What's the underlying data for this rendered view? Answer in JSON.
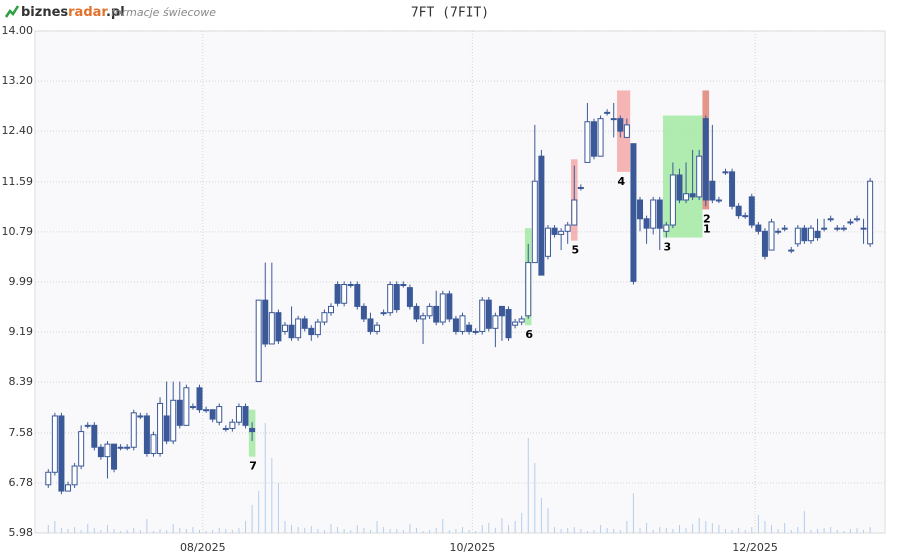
{
  "header": {
    "logo_parts": [
      "biznes",
      "radar",
      ".pl"
    ],
    "subtitle": "formacje świecowe"
  },
  "chart_data": {
    "type": "candlestick",
    "title": "7FT (7FIT)",
    "ylim": [
      5.98,
      14.0
    ],
    "yticks": [
      {
        "value": 5.98,
        "label": "5.98"
      },
      {
        "value": 6.78,
        "label": "6.78"
      },
      {
        "value": 7.58,
        "label": "7.58"
      },
      {
        "value": 8.39,
        "label": "8.39"
      },
      {
        "value": 9.19,
        "label": "9.19"
      },
      {
        "value": 9.99,
        "label": "9.99"
      },
      {
        "value": 10.79,
        "label": "10.79"
      },
      {
        "value": 11.59,
        "label": "11.59"
      },
      {
        "value": 12.4,
        "label": "12.40"
      },
      {
        "value": 13.2,
        "label": "13.20"
      },
      {
        "value": 14.0,
        "label": "14.00"
      }
    ],
    "xlim": [
      -0.5,
      126.5
    ],
    "xticks": [
      {
        "value": 23.5,
        "label": "08/2025"
      },
      {
        "value": 64.5,
        "label": "10/2025"
      },
      {
        "value": 107.5,
        "label": "12/2025"
      }
    ],
    "grid": true,
    "up_color": "#ffffff",
    "down_color": "#3b5998",
    "edge_color": "#3b5998",
    "volume_color": "#b3cdee",
    "open": [
      6.75,
      6.95,
      7.85,
      6.65,
      6.75,
      7.05,
      7.7,
      7.7,
      7.35,
      7.2,
      7.4,
      7.35,
      7.35,
      7.35,
      7.85,
      7.85,
      7.25,
      7.25,
      7.85,
      7.45,
      8.1,
      7.7,
      8.0,
      8.3,
      7.95,
      7.95,
      7.75,
      7.65,
      7.65,
      7.75,
      8.0,
      7.65,
      8.4,
      9.7,
      9.0,
      9.5,
      9.2,
      9.3,
      9.1,
      9.4,
      9.25,
      9.15,
      9.35,
      9.5,
      9.95,
      9.65,
      9.95,
      9.95,
      9.6,
      9.4,
      9.2,
      9.5,
      9.5,
      9.95,
      9.95,
      9.9,
      9.6,
      9.4,
      9.45,
      9.6,
      9.35,
      9.8,
      9.4,
      9.2,
      9.3,
      9.2,
      9.2,
      9.7,
      9.25,
      9.6,
      9.55,
      9.3,
      9.35,
      9.45,
      10.3,
      12.0,
      10.4,
      10.85,
      10.75,
      10.8,
      10.9,
      11.5,
      11.9,
      12.55,
      12.0,
      12.7,
      12.6,
      12.6,
      12.3,
      12.2,
      11.3,
      11.0,
      10.85,
      11.3,
      10.8,
      10.9,
      11.7,
      11.3,
      11.4,
      11.35,
      12.6,
      11.6,
      11.3,
      11.75,
      11.75,
      11.2,
      11.05,
      11.35,
      10.9,
      10.8,
      10.5,
      10.8,
      10.85,
      10.5,
      10.6,
      10.85,
      10.65,
      10.8,
      10.85,
      11.0,
      10.85,
      10.85,
      10.95,
      11.0,
      10.85,
      10.6
    ],
    "high": [
      7.0,
      7.9,
      7.9,
      6.8,
      7.1,
      7.7,
      7.75,
      7.75,
      7.4,
      7.45,
      7.4,
      7.4,
      7.4,
      7.95,
      7.9,
      7.9,
      7.6,
      8.15,
      8.4,
      8.4,
      8.4,
      8.35,
      8.05,
      8.35,
      8.0,
      7.95,
      8.05,
      7.7,
      7.8,
      8.05,
      8.05,
      7.75,
      9.7,
      10.3,
      10.3,
      9.55,
      9.35,
      9.6,
      9.45,
      9.45,
      9.3,
      9.4,
      9.55,
      9.65,
      10.0,
      10.0,
      10.0,
      10.0,
      9.65,
      9.5,
      9.35,
      9.55,
      10.0,
      10.0,
      10.0,
      9.95,
      9.65,
      9.5,
      9.65,
      9.85,
      9.85,
      9.85,
      9.45,
      9.5,
      9.35,
      9.25,
      9.75,
      9.75,
      9.5,
      9.6,
      9.6,
      9.4,
      9.45,
      10.6,
      12.5,
      12.1,
      10.9,
      10.9,
      10.85,
      10.95,
      11.85,
      11.55,
      12.85,
      12.6,
      12.65,
      12.75,
      12.85,
      12.65,
      12.6,
      12.2,
      11.35,
      11.05,
      11.35,
      11.35,
      10.95,
      11.9,
      11.8,
      11.9,
      12.1,
      12.1,
      12.65,
      12.5,
      11.35,
      11.8,
      11.8,
      11.25,
      11.1,
      11.4,
      10.95,
      10.85,
      11.0,
      10.85,
      10.9,
      10.55,
      10.9,
      10.9,
      10.9,
      11.0,
      11.0,
      11.05,
      10.9,
      10.9,
      11.0,
      11.05,
      11.0,
      11.65
    ],
    "low": [
      6.7,
      6.9,
      6.6,
      6.65,
      6.7,
      7.0,
      7.65,
      7.3,
      7.15,
      6.85,
      6.95,
      7.3,
      7.3,
      7.3,
      7.8,
      7.2,
      7.2,
      7.2,
      7.4,
      7.4,
      7.65,
      7.7,
      7.95,
      7.9,
      7.9,
      7.75,
      7.7,
      7.6,
      7.6,
      7.7,
      7.65,
      7.45,
      8.4,
      8.95,
      9.0,
      9.0,
      9.15,
      9.05,
      9.05,
      9.2,
      9.05,
      9.1,
      9.3,
      9.45,
      9.6,
      9.6,
      9.9,
      9.55,
      9.35,
      9.15,
      9.15,
      9.45,
      9.45,
      9.5,
      9.9,
      9.55,
      9.35,
      9.0,
      9.4,
      9.3,
      9.3,
      9.35,
      9.15,
      9.15,
      9.15,
      9.15,
      9.15,
      9.2,
      8.95,
      9.05,
      9.05,
      9.25,
      9.3,
      9.4,
      10.3,
      10.1,
      10.35,
      10.7,
      10.5,
      10.6,
      10.9,
      11.45,
      11.9,
      11.95,
      12.0,
      12.65,
      12.3,
      12.3,
      12.3,
      9.95,
      10.8,
      10.6,
      10.75,
      10.5,
      10.7,
      10.85,
      11.25,
      11.25,
      11.3,
      11.3,
      11.2,
      11.25,
      11.25,
      11.7,
      11.15,
      11.0,
      11.0,
      10.85,
      10.75,
      10.35,
      10.5,
      10.75,
      10.8,
      10.45,
      10.55,
      10.6,
      10.6,
      10.65,
      10.8,
      10.95,
      10.8,
      10.8,
      10.9,
      10.95,
      10.6,
      10.55
    ],
    "close": [
      6.95,
      7.85,
      6.65,
      6.75,
      7.05,
      7.6,
      7.7,
      7.35,
      7.2,
      7.4,
      7.0,
      7.35,
      7.35,
      7.9,
      7.85,
      7.25,
      7.55,
      8.05,
      7.45,
      8.1,
      7.7,
      8.3,
      8.0,
      7.95,
      7.95,
      7.8,
      8.0,
      7.65,
      7.75,
      8.0,
      7.7,
      7.6,
      9.7,
      9.0,
      9.5,
      9.05,
      9.3,
      9.1,
      9.4,
      9.25,
      9.15,
      9.35,
      9.5,
      9.6,
      9.65,
      9.95,
      9.95,
      9.6,
      9.4,
      9.2,
      9.3,
      9.5,
      9.95,
      9.55,
      9.95,
      9.6,
      9.4,
      9.45,
      9.6,
      9.35,
      9.8,
      9.4,
      9.2,
      9.45,
      9.2,
      9.2,
      9.7,
      9.25,
      9.45,
      9.45,
      9.1,
      9.35,
      9.4,
      10.3,
      11.6,
      10.1,
      10.85,
      10.75,
      10.8,
      10.9,
      11.3,
      11.5,
      12.55,
      12.0,
      12.6,
      12.7,
      12.6,
      12.4,
      12.5,
      10.0,
      11.0,
      10.85,
      11.3,
      10.85,
      10.9,
      11.7,
      11.3,
      11.4,
      11.35,
      12.0,
      11.3,
      11.3,
      11.3,
      11.75,
      11.2,
      11.05,
      11.05,
      10.9,
      10.8,
      10.4,
      10.95,
      10.8,
      10.85,
      10.5,
      10.85,
      10.65,
      10.85,
      10.7,
      10.85,
      11.0,
      10.85,
      10.85,
      10.95,
      11.0,
      10.85,
      11.6
    ],
    "volume": [
      8,
      12,
      5,
      4,
      6,
      3,
      9,
      5,
      3,
      8,
      4,
      2,
      3,
      5,
      3,
      14,
      2,
      4,
      3,
      9,
      5,
      4,
      6,
      3,
      2,
      3,
      5,
      4,
      3,
      5,
      12,
      28,
      42,
      110,
      75,
      50,
      12,
      8,
      6,
      5,
      7,
      4,
      3,
      9,
      6,
      4,
      3,
      8,
      5,
      3,
      12,
      6,
      4,
      4,
      3,
      9,
      5,
      2,
      3,
      5,
      14,
      3,
      4,
      6,
      3,
      2,
      8,
      10,
      5,
      15,
      8,
      12,
      20,
      95,
      70,
      35,
      25,
      6,
      4,
      5,
      6,
      4,
      2,
      3,
      8,
      5,
      4,
      3,
      12,
      40,
      5,
      10,
      3,
      6,
      5,
      4,
      8,
      5,
      9,
      15,
      12,
      10,
      8,
      4,
      3,
      5,
      3,
      6,
      18,
      12,
      8,
      4,
      10,
      3,
      6,
      22,
      3,
      4,
      5,
      6,
      3,
      2,
      4,
      5,
      3,
      6
    ],
    "patterns": [
      {
        "label": "7",
        "start": 31,
        "end": 31,
        "low": 7.2,
        "high": 7.95,
        "color": "#9ee89e"
      },
      {
        "label": "6",
        "start": 73,
        "end": 73,
        "low": 9.3,
        "high": 10.85,
        "color": "#9ee89e"
      },
      {
        "label": "5",
        "start": 80,
        "end": 80,
        "low": 10.65,
        "high": 11.95,
        "color": "#f4a4a4"
      },
      {
        "label": "4",
        "start": 87,
        "end": 88,
        "low": 11.75,
        "high": 13.05,
        "color": "#f4a4a4"
      },
      {
        "label": "3",
        "start": 94,
        "end": 99,
        "low": 10.7,
        "high": 12.65,
        "color": "#9ee89e"
      },
      {
        "label": "2",
        "start": 100,
        "end": 100,
        "low": 11.15,
        "high": 13.05,
        "color": "#9ee89e"
      },
      {
        "label": "1",
        "start": 100,
        "end": 100,
        "low": 11.15,
        "high": 13.05,
        "color": "#f08080"
      }
    ]
  }
}
